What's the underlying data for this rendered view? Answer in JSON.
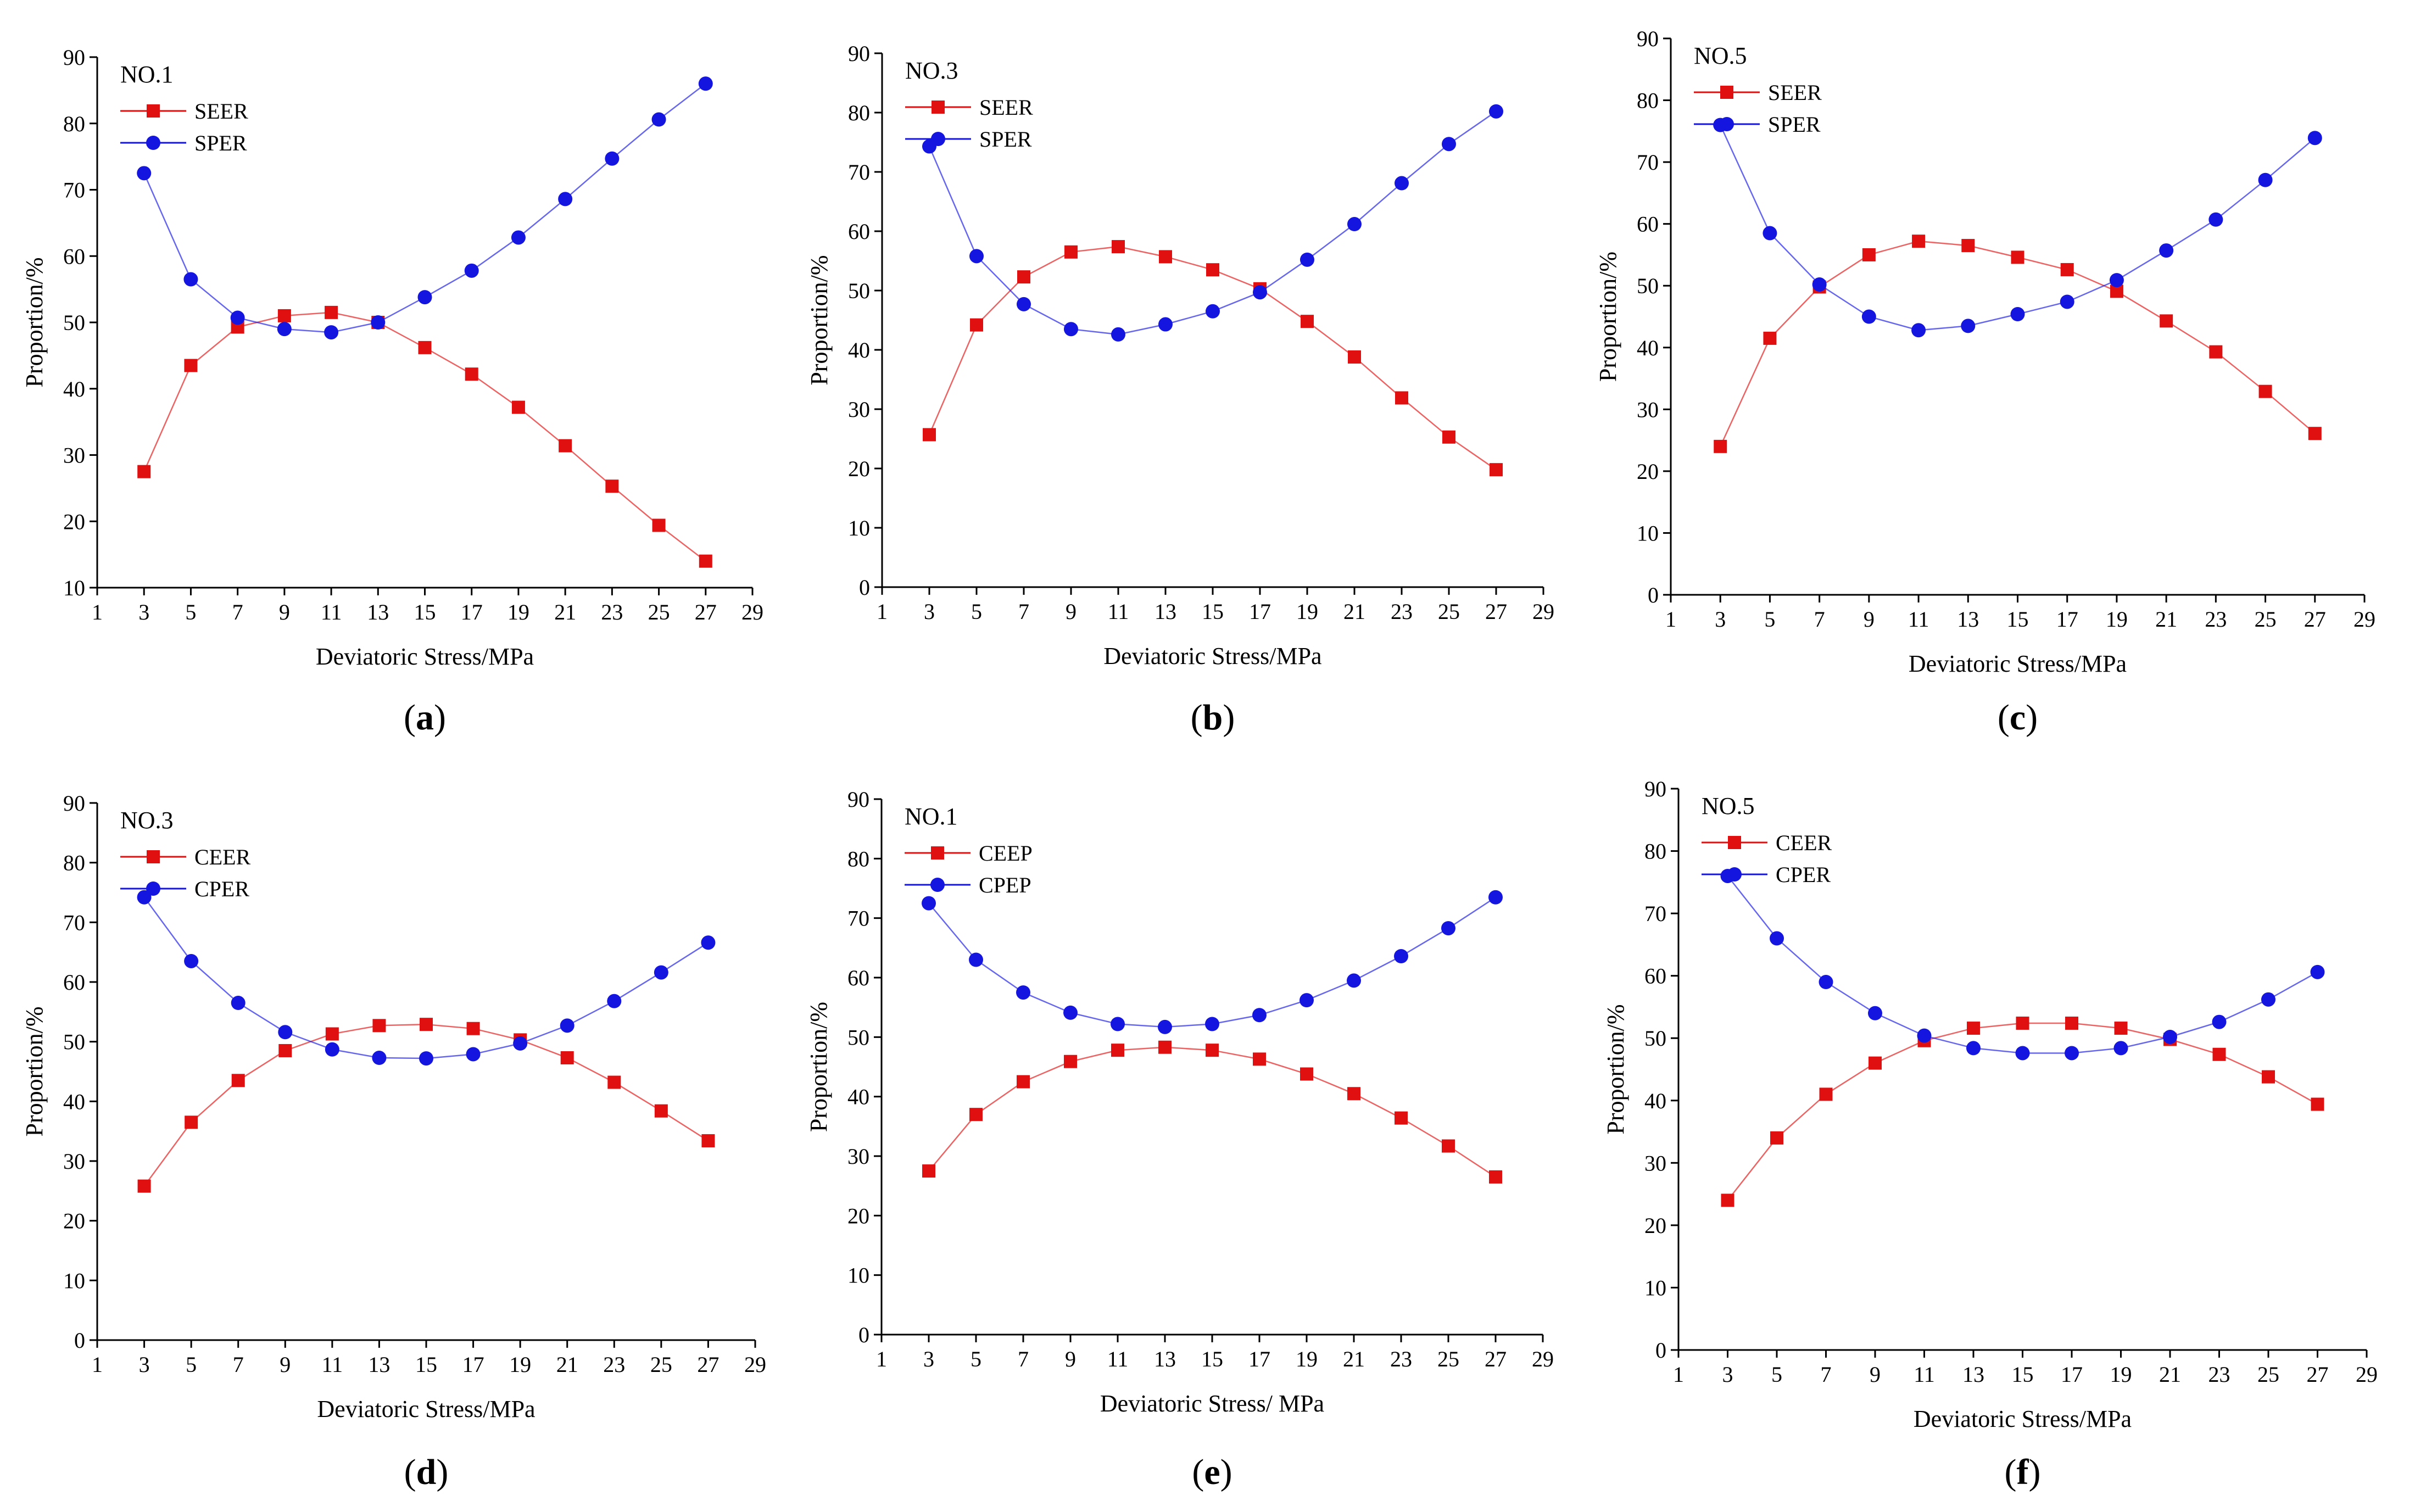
{
  "chart_data": [
    {
      "panel": "a",
      "type": "line",
      "label": "NO.1",
      "xlabel": "Deviatoric Stress/MPa",
      "ylabel": "Proportion/%",
      "xlim": [
        1,
        29
      ],
      "ylim": [
        10,
        90
      ],
      "xticks": [
        1,
        3,
        5,
        7,
        9,
        11,
        13,
        15,
        17,
        19,
        21,
        23,
        25,
        27,
        29
      ],
      "yticks": [
        10,
        20,
        30,
        40,
        50,
        60,
        70,
        80,
        90
      ],
      "x": [
        3,
        5,
        7,
        9,
        11,
        13,
        15,
        17,
        19,
        21,
        23,
        25,
        27
      ],
      "series": [
        {
          "name": "SEER",
          "color": "#e11010",
          "marker": "square",
          "values": [
            27.5,
            43.5,
            49.3,
            51.0,
            51.5,
            50.0,
            46.2,
            42.2,
            37.2,
            31.4,
            25.3,
            19.4,
            14.0
          ]
        },
        {
          "name": "SPER",
          "color": "#1515e0",
          "marker": "circle",
          "values": [
            72.5,
            56.5,
            50.7,
            49.0,
            48.5,
            50.0,
            53.8,
            57.8,
            62.8,
            68.6,
            74.7,
            80.6,
            86.0
          ]
        }
      ],
      "caption": "a"
    },
    {
      "panel": "b",
      "type": "line",
      "label": "NO.3",
      "xlabel": "Deviatoric Stress/MPa",
      "ylabel": "Proportion/%",
      "xlim": [
        1,
        29
      ],
      "ylim": [
        0,
        90
      ],
      "xticks": [
        1,
        3,
        5,
        7,
        9,
        11,
        13,
        15,
        17,
        19,
        21,
        23,
        25,
        27,
        29
      ],
      "yticks": [
        0,
        10,
        20,
        30,
        40,
        50,
        60,
        70,
        80,
        90
      ],
      "x": [
        3,
        5,
        7,
        9,
        11,
        13,
        15,
        17,
        19,
        21,
        23,
        25,
        27
      ],
      "series": [
        {
          "name": "SEER",
          "color": "#e11010",
          "marker": "square",
          "values": [
            25.7,
            44.2,
            52.3,
            56.5,
            57.4,
            55.7,
            53.5,
            50.3,
            44.8,
            38.8,
            31.9,
            25.3,
            19.8
          ]
        },
        {
          "name": "SPER",
          "color": "#1515e0",
          "marker": "circle",
          "values": [
            74.3,
            55.8,
            47.7,
            43.5,
            42.6,
            44.3,
            46.5,
            49.7,
            55.2,
            61.2,
            68.1,
            74.7,
            80.2
          ]
        }
      ],
      "caption": "b"
    },
    {
      "panel": "c",
      "type": "line",
      "label": "NO.5",
      "xlabel": "Deviatoric Stress/MPa",
      "ylabel": "Proportion/%",
      "xlim": [
        1,
        29
      ],
      "ylim": [
        0,
        90
      ],
      "xticks": [
        1,
        3,
        5,
        7,
        9,
        11,
        13,
        15,
        17,
        19,
        21,
        23,
        25,
        27,
        29
      ],
      "yticks": [
        0,
        10,
        20,
        30,
        40,
        50,
        60,
        70,
        80,
        90
      ],
      "x": [
        3,
        5,
        7,
        9,
        11,
        13,
        15,
        17,
        19,
        21,
        23,
        25,
        27
      ],
      "series": [
        {
          "name": "SEER",
          "color": "#e11010",
          "marker": "square",
          "values": [
            24.0,
            41.5,
            49.8,
            55.0,
            57.2,
            56.5,
            54.6,
            52.6,
            49.1,
            44.3,
            39.3,
            32.9,
            26.1
          ]
        },
        {
          "name": "SPER",
          "color": "#1515e0",
          "marker": "circle",
          "values": [
            76.0,
            58.5,
            50.2,
            45.0,
            42.8,
            43.5,
            45.4,
            47.4,
            50.9,
            55.7,
            60.7,
            67.1,
            73.9
          ]
        }
      ],
      "caption": "c"
    },
    {
      "panel": "d",
      "type": "line",
      "label": "NO.3",
      "xlabel": "Deviatoric Stress/MPa",
      "ylabel": "Proportion/%",
      "xlim": [
        1,
        29
      ],
      "ylim": [
        0,
        90
      ],
      "xticks": [
        1,
        3,
        5,
        7,
        9,
        11,
        13,
        15,
        17,
        19,
        21,
        23,
        25,
        27,
        29
      ],
      "yticks": [
        0,
        10,
        20,
        30,
        40,
        50,
        60,
        70,
        80,
        90
      ],
      "x": [
        3,
        5,
        7,
        9,
        11,
        13,
        15,
        17,
        19,
        21,
        23,
        25,
        27
      ],
      "series": [
        {
          "name": "CEER",
          "color": "#e11010",
          "marker": "square",
          "values": [
            25.8,
            36.5,
            43.5,
            48.5,
            51.3,
            52.7,
            52.9,
            52.2,
            50.3,
            47.3,
            43.2,
            38.4,
            33.4
          ]
        },
        {
          "name": "CPER",
          "color": "#1515e0",
          "marker": "circle",
          "values": [
            74.2,
            63.5,
            56.5,
            51.6,
            48.7,
            47.3,
            47.2,
            47.9,
            49.7,
            52.7,
            56.8,
            61.6,
            66.6
          ]
        }
      ],
      "caption": "d"
    },
    {
      "panel": "e",
      "type": "line",
      "label": "NO.1",
      "xlabel": "Deviatoric Stress/ MPa",
      "ylabel": "Proportion/%",
      "xlim": [
        1,
        29
      ],
      "ylim": [
        0,
        90
      ],
      "xticks": [
        1,
        3,
        5,
        7,
        9,
        11,
        13,
        15,
        17,
        19,
        21,
        23,
        25,
        27,
        29
      ],
      "yticks": [
        0,
        10,
        20,
        30,
        40,
        50,
        60,
        70,
        80,
        90
      ],
      "x": [
        3,
        5,
        7,
        9,
        11,
        13,
        15,
        17,
        19,
        21,
        23,
        25,
        27
      ],
      "series": [
        {
          "name": "CEEP",
          "color": "#e11010",
          "marker": "square",
          "values": [
            27.5,
            37.0,
            42.5,
            45.9,
            47.8,
            48.3,
            47.8,
            46.3,
            43.8,
            40.5,
            36.4,
            31.7,
            26.5
          ]
        },
        {
          "name": "CPEP",
          "color": "#1515e0",
          "marker": "circle",
          "values": [
            72.5,
            63.0,
            57.5,
            54.1,
            52.2,
            51.7,
            52.2,
            53.7,
            56.2,
            59.5,
            63.6,
            68.3,
            73.5
          ]
        }
      ],
      "caption": "e"
    },
    {
      "panel": "f",
      "type": "line",
      "label": "NO.5",
      "xlabel": "Deviatoric Stress/MPa",
      "ylabel": "Proportion/%",
      "xlim": [
        1,
        29
      ],
      "ylim": [
        0,
        90
      ],
      "xticks": [
        1,
        3,
        5,
        7,
        9,
        11,
        13,
        15,
        17,
        19,
        21,
        23,
        25,
        27,
        29
      ],
      "yticks": [
        0,
        10,
        20,
        30,
        40,
        50,
        60,
        70,
        80,
        90
      ],
      "x": [
        3,
        5,
        7,
        9,
        11,
        13,
        15,
        17,
        19,
        21,
        23,
        25,
        27
      ],
      "series": [
        {
          "name": "CEER",
          "color": "#e11010",
          "marker": "square",
          "values": [
            24.0,
            34.0,
            41.0,
            46.0,
            49.6,
            51.6,
            52.4,
            52.4,
            51.6,
            49.8,
            47.4,
            43.8,
            39.4
          ]
        },
        {
          "name": "CPER",
          "color": "#1515e0",
          "marker": "circle",
          "values": [
            76.0,
            66.0,
            59.0,
            54.0,
            50.4,
            48.4,
            47.6,
            47.6,
            48.4,
            50.2,
            52.6,
            56.2,
            60.6
          ]
        }
      ],
      "caption": "f"
    }
  ]
}
